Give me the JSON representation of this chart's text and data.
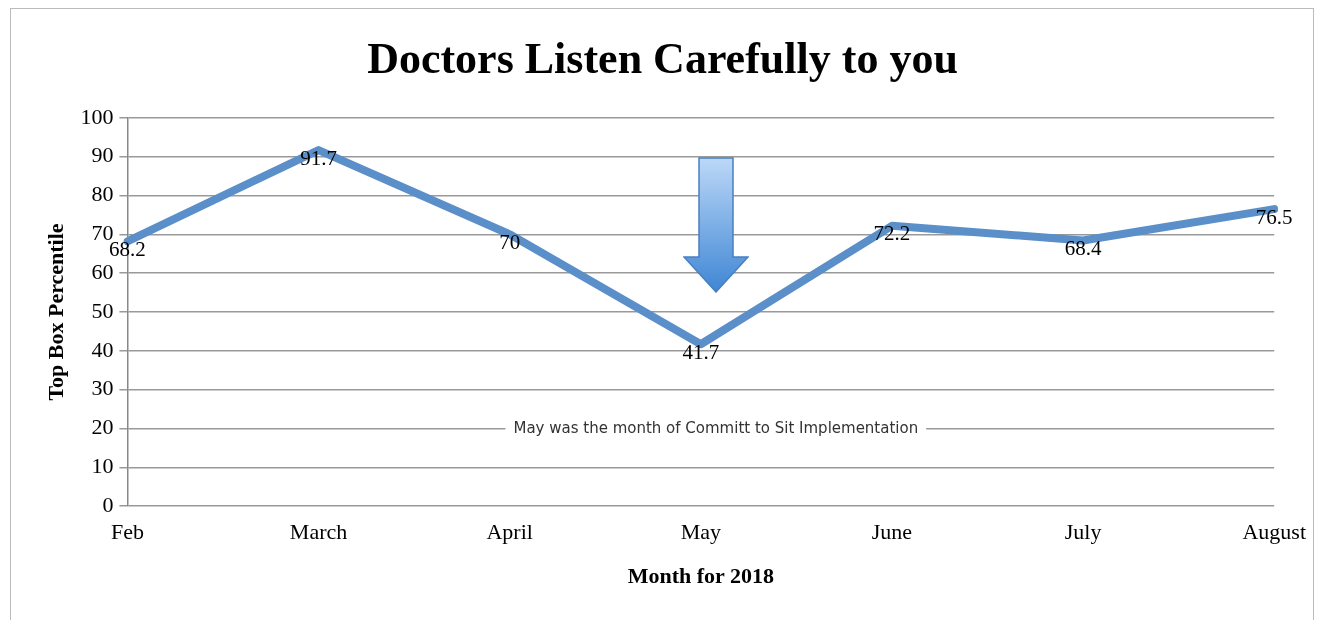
{
  "chart_data": {
    "type": "line",
    "title": "Doctors Listen Carefully to you",
    "xlabel": "Month for 2018",
    "ylabel": "Top Box Percentile",
    "categories": [
      "Feb",
      "March",
      "April",
      "May",
      "June",
      "July",
      "August"
    ],
    "series": [
      {
        "color": "#5b8fc9",
        "values": [
          68.2,
          91.7,
          70,
          41.7,
          72.2,
          68.4,
          76.5
        ]
      }
    ],
    "ylim": [
      0,
      100
    ],
    "yticks": [
      0,
      10,
      20,
      30,
      40,
      50,
      60,
      70,
      80,
      90,
      100
    ],
    "grid": "y",
    "legend": false,
    "marker": "none",
    "line_style": "solid",
    "data_labels": true,
    "annotations": [
      "May was the month of Committ to Sit Implementation"
    ]
  }
}
